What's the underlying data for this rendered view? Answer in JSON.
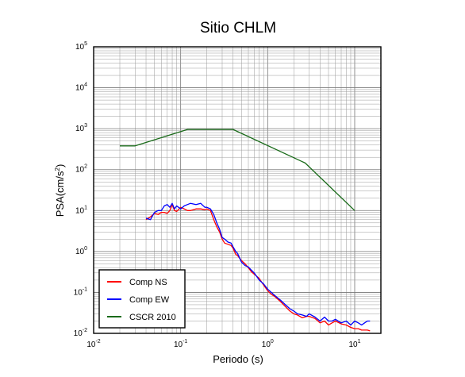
{
  "chart_data": {
    "type": "line",
    "title": "Sitio CHLM",
    "xlabel": "Periodo (s)",
    "ylabel_main": "PSA(cm/s",
    "ylabel_sup": "2",
    "ylabel_close": ")",
    "x_scale": "log",
    "y_scale": "log",
    "xlim": [
      0.01,
      20
    ],
    "ylim": [
      0.01,
      100000
    ],
    "grid": true,
    "legend_position": "bottom-left",
    "x_ticks": [
      {
        "base": "10",
        "exp": "-2"
      },
      {
        "base": "10",
        "exp": "-1"
      },
      {
        "base": "10",
        "exp": "0"
      },
      {
        "base": "10",
        "exp": "1"
      }
    ],
    "y_ticks": [
      {
        "base": "10",
        "exp": "-2"
      },
      {
        "base": "10",
        "exp": "-1"
      },
      {
        "base": "10",
        "exp": "0"
      },
      {
        "base": "10",
        "exp": "1"
      },
      {
        "base": "10",
        "exp": "2"
      },
      {
        "base": "10",
        "exp": "3"
      },
      {
        "base": "10",
        "exp": "4"
      },
      {
        "base": "10",
        "exp": "5"
      }
    ],
    "series": [
      {
        "name": "Comp NS",
        "color": "#ff0000",
        "x": [
          0.04,
          0.045,
          0.05,
          0.055,
          0.06,
          0.065,
          0.07,
          0.075,
          0.08,
          0.085,
          0.09,
          0.1,
          0.11,
          0.12,
          0.13,
          0.15,
          0.17,
          0.19,
          0.2,
          0.22,
          0.24,
          0.26,
          0.28,
          0.3,
          0.32,
          0.35,
          0.38,
          0.4,
          0.43,
          0.45,
          0.5,
          0.55,
          0.6,
          0.65,
          0.7,
          0.8,
          0.9,
          1.0,
          1.1,
          1.2,
          1.4,
          1.6,
          1.8,
          2.0,
          2.2,
          2.5,
          2.8,
          3.0,
          3.5,
          4.0,
          4.5,
          5.0,
          5.5,
          6.0,
          7.0,
          8.0,
          9.0,
          10.0,
          11.0,
          12.0,
          13.0,
          14.0,
          15.0
        ],
        "y": [
          6.0,
          7.0,
          8.5,
          8.0,
          9.0,
          9.0,
          8.5,
          10.0,
          14.0,
          10.0,
          9.5,
          12.0,
          11.0,
          10.0,
          10.0,
          11.0,
          11.0,
          10.5,
          11.0,
          10.0,
          6.0,
          4.0,
          3.0,
          2.0,
          1.6,
          1.5,
          1.4,
          1.2,
          0.85,
          0.8,
          0.6,
          0.5,
          0.4,
          0.32,
          0.28,
          0.22,
          0.15,
          0.11,
          0.09,
          0.08,
          0.06,
          0.045,
          0.035,
          0.03,
          0.028,
          0.024,
          0.026,
          0.026,
          0.023,
          0.018,
          0.02,
          0.016,
          0.018,
          0.02,
          0.017,
          0.016,
          0.014,
          0.013,
          0.013,
          0.012,
          0.012,
          0.012,
          0.0115
        ]
      },
      {
        "name": "Comp EW",
        "color": "#0000ff",
        "x": [
          0.04,
          0.045,
          0.05,
          0.055,
          0.06,
          0.065,
          0.07,
          0.075,
          0.08,
          0.085,
          0.09,
          0.1,
          0.11,
          0.12,
          0.13,
          0.15,
          0.17,
          0.19,
          0.2,
          0.22,
          0.24,
          0.26,
          0.28,
          0.3,
          0.32,
          0.35,
          0.38,
          0.4,
          0.43,
          0.45,
          0.5,
          0.55,
          0.6,
          0.65,
          0.7,
          0.8,
          0.9,
          1.0,
          1.1,
          1.2,
          1.4,
          1.6,
          1.8,
          2.0,
          2.2,
          2.5,
          2.8,
          3.0,
          3.5,
          4.0,
          4.5,
          5.0,
          5.5,
          6.0,
          7.0,
          8.0,
          9.0,
          10.0,
          11.0,
          12.0,
          13.0,
          14.0,
          15.0
        ],
        "y": [
          6.5,
          6.0,
          9.0,
          10.0,
          10.0,
          13.0,
          14.0,
          12.0,
          15.0,
          11.0,
          13.0,
          11.0,
          13.0,
          14.0,
          15.0,
          14.0,
          15.0,
          12.0,
          12.0,
          11.0,
          8.0,
          5.0,
          3.5,
          2.2,
          2.0,
          1.7,
          1.6,
          1.3,
          1.0,
          0.9,
          0.55,
          0.45,
          0.42,
          0.35,
          0.3,
          0.2,
          0.16,
          0.12,
          0.1,
          0.085,
          0.065,
          0.05,
          0.04,
          0.035,
          0.03,
          0.028,
          0.026,
          0.03,
          0.025,
          0.02,
          0.025,
          0.02,
          0.02,
          0.022,
          0.018,
          0.02,
          0.016,
          0.02,
          0.018,
          0.016,
          0.018,
          0.02,
          0.02
        ]
      },
      {
        "name": "CSCR 2010",
        "color": "#1a6b1a",
        "x": [
          0.02,
          0.03,
          0.12,
          0.4,
          2.7,
          10.0
        ],
        "y": [
          380,
          380,
          960,
          960,
          145,
          10
        ]
      }
    ]
  }
}
